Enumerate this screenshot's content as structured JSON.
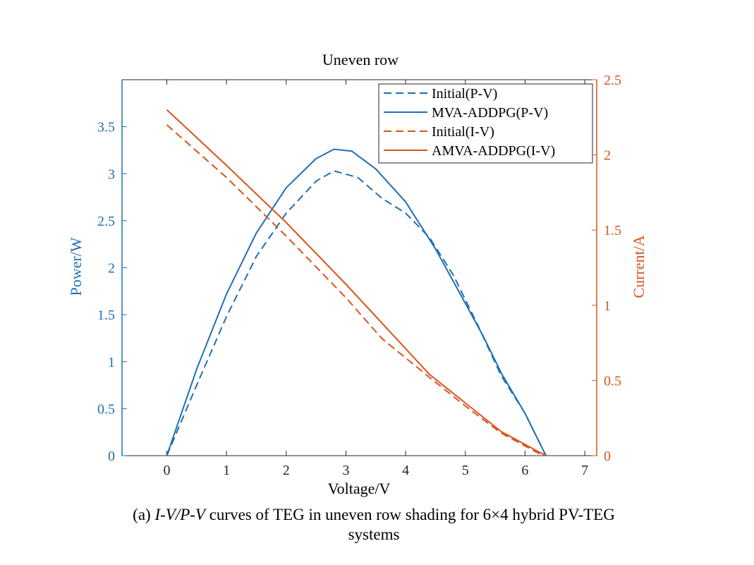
{
  "chart_data": {
    "type": "line",
    "title": "Uneven row",
    "xlabel": "Voltage/V",
    "ylabel_left": "Power/W",
    "ylabel_right": "Current/A",
    "xlim": [
      -0.75,
      7.2
    ],
    "ylim_left": [
      0,
      4.0
    ],
    "ylim_right": [
      0,
      2.5
    ],
    "x_ticks": [
      "0",
      "1",
      "2",
      "3",
      "4",
      "5",
      "6",
      "7"
    ],
    "y_left_ticks": [
      "0",
      "0.5",
      "1",
      "1.5",
      "2",
      "2.5",
      "3",
      "3.5"
    ],
    "y_right_ticks": [
      "0",
      "0.5",
      "1",
      "1.5",
      "2",
      "2.5"
    ],
    "grid": false,
    "legend_position": "top-right",
    "series": [
      {
        "name": "Initial(P-V)",
        "axis": "left",
        "color": "#1f6fb4",
        "dash": "dashed",
        "points": [
          [
            0,
            0
          ],
          [
            0.5,
            0.75
          ],
          [
            1,
            1.48
          ],
          [
            1.5,
            2.12
          ],
          [
            2,
            2.58
          ],
          [
            2.5,
            2.92
          ],
          [
            2.8,
            3.03
          ],
          [
            3.2,
            2.96
          ],
          [
            3.6,
            2.74
          ],
          [
            4,
            2.58
          ],
          [
            4.4,
            2.32
          ],
          [
            4.8,
            1.92
          ],
          [
            5.2,
            1.4
          ],
          [
            5.6,
            0.85
          ],
          [
            6,
            0.45
          ],
          [
            6.35,
            0
          ]
        ]
      },
      {
        "name": "MVA-ADDPG(P-V)",
        "axis": "left",
        "color": "#1f6fb4",
        "dash": "solid",
        "points": [
          [
            0,
            0
          ],
          [
            0.5,
            0.92
          ],
          [
            1,
            1.72
          ],
          [
            1.5,
            2.37
          ],
          [
            2,
            2.85
          ],
          [
            2.5,
            3.16
          ],
          [
            2.8,
            3.26
          ],
          [
            3.1,
            3.24
          ],
          [
            3.5,
            3.05
          ],
          [
            4,
            2.7
          ],
          [
            4.5,
            2.2
          ],
          [
            5,
            1.62
          ],
          [
            5.3,
            1.27
          ],
          [
            5.6,
            0.88
          ],
          [
            6,
            0.45
          ],
          [
            6.35,
            0
          ]
        ]
      },
      {
        "name": "Initial(I-V)",
        "axis": "right",
        "color": "#d9541b",
        "dash": "dashed",
        "points": [
          [
            0,
            2.2
          ],
          [
            1,
            1.85
          ],
          [
            2,
            1.46
          ],
          [
            3,
            1.05
          ],
          [
            3.6,
            0.78
          ],
          [
            4.4,
            0.52
          ],
          [
            5,
            0.33
          ],
          [
            5.6,
            0.15
          ],
          [
            6.3,
            0
          ]
        ]
      },
      {
        "name": "AMVA-ADDPG(I-V)",
        "axis": "right",
        "color": "#d9541b",
        "dash": "solid",
        "points": [
          [
            0,
            2.3
          ],
          [
            1,
            1.93
          ],
          [
            2,
            1.55
          ],
          [
            3,
            1.14
          ],
          [
            4.4,
            0.54
          ],
          [
            5,
            0.35
          ],
          [
            5.6,
            0.16
          ],
          [
            6.35,
            0
          ]
        ]
      }
    ]
  },
  "caption": {
    "prefix": "(a) ",
    "italic": "I-V/P-V",
    "rest_line1": " curves of TEG in uneven row shading for 6×4 hybrid PV-TEG",
    "line2": "systems"
  }
}
